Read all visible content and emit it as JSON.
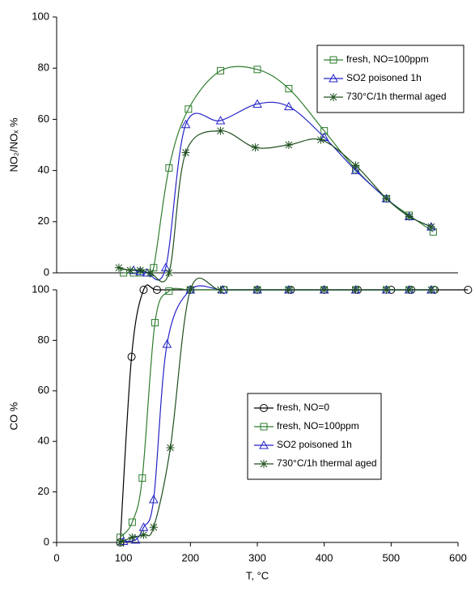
{
  "chart_data": [
    {
      "type": "line",
      "ylabel": "NO₂/NOₓ %",
      "xlim": [
        0,
        600
      ],
      "ylim": [
        0,
        100
      ],
      "yticks": [
        0,
        20,
        40,
        60,
        80,
        100
      ],
      "legend": "upper right",
      "series": [
        {
          "name": "fresh, NO=100ppm",
          "color": "#2e7d2e",
          "marker": "square",
          "x": [
            100,
            115,
            125,
            135,
            145,
            168,
            197,
            245,
            300,
            347,
            400,
            447,
            493,
            527,
            563
          ],
          "values": [
            0,
            0,
            0,
            0,
            2,
            41,
            64,
            79,
            79.5,
            72,
            55.5,
            40.5,
            29,
            22.5,
            16
          ]
        },
        {
          "name": "SO2 poisoned 1h",
          "color": "#2323c8",
          "marker": "triangle",
          "x": [
            115,
            125,
            135,
            163,
            193,
            245,
            300,
            347,
            400,
            447,
            493,
            527,
            560
          ],
          "values": [
            1,
            0.5,
            0,
            2,
            58,
            59.5,
            66,
            65,
            53,
            40,
            29,
            22,
            18
          ]
        },
        {
          "name": "730°C/1h thermal aged",
          "color": "#1f4f1f",
          "marker": "star",
          "x": [
            93,
            110,
            125,
            140,
            168,
            193,
            245,
            297,
            347,
            395,
            447,
            493,
            527,
            560
          ],
          "values": [
            2,
            1,
            1,
            0,
            0,
            47,
            55.5,
            49,
            50,
            52,
            42,
            29,
            22,
            18
          ]
        }
      ]
    },
    {
      "type": "line",
      "xlabel": "T, °C",
      "ylabel": "CO %",
      "xlim": [
        0,
        600
      ],
      "xticks": [
        0,
        100,
        200,
        300,
        400,
        500,
        600
      ],
      "ylim": [
        0,
        100
      ],
      "yticks": [
        0,
        20,
        40,
        60,
        80,
        100
      ],
      "legend": "center right",
      "series": [
        {
          "name": "fresh, NO=0",
          "color": "#000000",
          "marker": "circle",
          "x": [
            95,
            112,
            130,
            150,
            200,
            250,
            300,
            350,
            400,
            450,
            500,
            530,
            565,
            615
          ],
          "values": [
            0,
            73.5,
            100,
            100,
            100,
            100,
            100,
            100,
            100,
            100,
            100,
            100,
            100,
            100
          ]
        },
        {
          "name": "fresh, NO=100ppm",
          "color": "#2e7d2e",
          "marker": "square",
          "x": [
            95,
            113,
            128,
            147,
            168,
            200,
            250,
            300,
            347,
            400,
            447,
            493,
            527,
            563
          ],
          "values": [
            2,
            8,
            25.5,
            87,
            99.5,
            100,
            100,
            100,
            100,
            100,
            100,
            100,
            100,
            100
          ]
        },
        {
          "name": "SO2 poisoned 1h",
          "color": "#2323c8",
          "marker": "triangle",
          "x": [
            100,
            118,
            130,
            145,
            165,
            200,
            248,
            300,
            347,
            400,
            447,
            493,
            527,
            560
          ],
          "values": [
            0.5,
            1,
            6,
            17,
            78.5,
            100,
            100,
            100,
            100,
            100,
            100,
            100,
            100,
            100
          ]
        },
        {
          "name": "730°C/1h thermal aged",
          "color": "#1f4f1f",
          "marker": "star",
          "x": [
            95,
            113,
            130,
            145,
            170,
            200,
            245,
            300,
            347,
            400,
            447,
            493,
            527,
            560
          ],
          "values": [
            0,
            2,
            3,
            6,
            37.5,
            100,
            100,
            100,
            100,
            100,
            100,
            100,
            100,
            100
          ]
        }
      ]
    }
  ]
}
